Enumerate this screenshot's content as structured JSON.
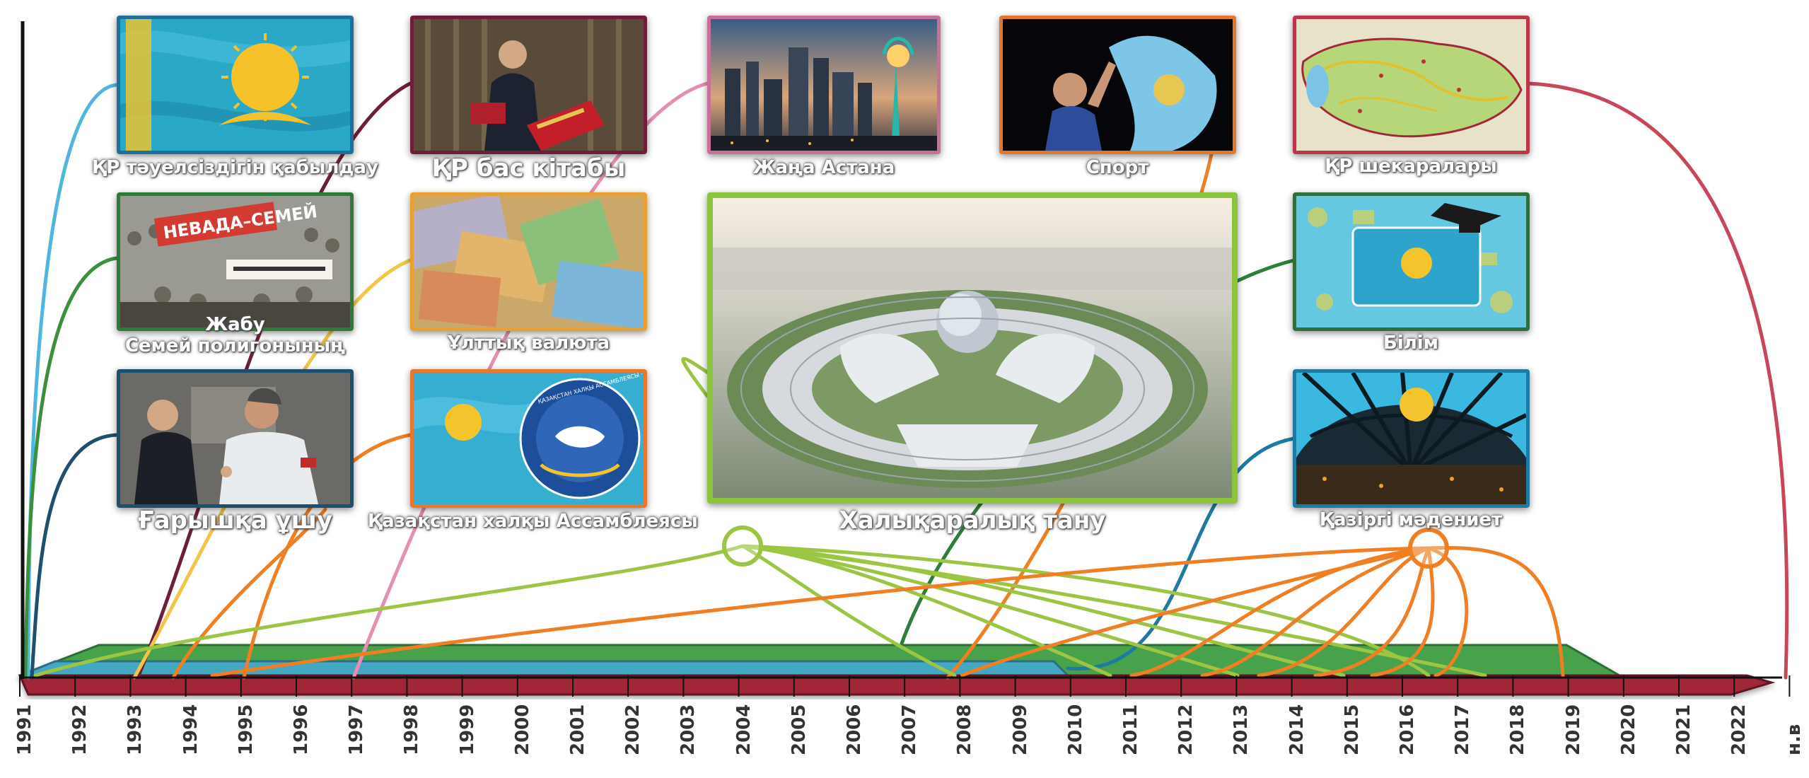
{
  "timeline": {
    "years": [
      "1991",
      "1992",
      "1993",
      "1994",
      "1995",
      "1996",
      "1997",
      "1998",
      "1999",
      "2000",
      "2001",
      "2002",
      "2003",
      "2004",
      "2005",
      "2006",
      "2007",
      "2008",
      "2009",
      "2010",
      "2011",
      "2012",
      "2013",
      "2014",
      "2015",
      "2016",
      "2017",
      "2018",
      "2019",
      "2020",
      "2021",
      "2022",
      "н.в"
    ]
  },
  "cards": [
    {
      "id": "independence",
      "label": "ҚР тәуелсіздігін қабылдау",
      "border": "#1f6f9a",
      "image": "kazakhstan-flag-waving"
    },
    {
      "id": "constitution",
      "label": "ҚР бас кітабы",
      "border": "#6d1f3a",
      "image": "president-reading-constitution"
    },
    {
      "id": "astana",
      "label": "Жаңа Астана",
      "border": "#c86f9a",
      "image": "astana-skyline-baiterek"
    },
    {
      "id": "sport",
      "label": "Спорт",
      "border": "#e07828",
      "image": "athlete-with-flag"
    },
    {
      "id": "borders",
      "label": "ҚР шекаралары",
      "border": "#b8374a",
      "image": "map-of-kazakhstan"
    },
    {
      "id": "polygon",
      "label_line1": "Жабу",
      "label_line2": "Семей полигонының",
      "border": "#2d7a3a",
      "image": "protest-nevada-semey"
    },
    {
      "id": "currency",
      "label": "Ұлттық валюта",
      "border": "#e8a030",
      "image": "tenge-banknotes"
    },
    {
      "id": "recognition",
      "label": "Халықаралық тану",
      "border": "#8cc43c",
      "image": "expo-2017-aerial"
    },
    {
      "id": "education",
      "label": "Білім",
      "border": "#2f6f3f",
      "image": "education-flag-graduation-cap"
    },
    {
      "id": "space",
      "label": "Ғарышқа ұшу",
      "border": "#1f4f6f",
      "image": "president-with-cosmonaut"
    },
    {
      "id": "assembly",
      "label": "Қазақстан халқы Ассамблеясы",
      "border": "#e87830",
      "image": "assembly-emblem-flag"
    },
    {
      "id": "culture",
      "label": "Қазіргі мәдениет",
      "border": "#1e7aa0",
      "image": "khan-shatyr-dome-interior"
    }
  ],
  "assembly_emblem_text": "ҚАЗАҚСТАН ХАЛҚЫ АССАМБЛЕЯСЫ · АССАМБЛЕЯ НАРОДА КАЗАХСТАНА",
  "protest_sign_text": "НЕВАДА–СЕМЕЙ",
  "colors": {
    "axis": "#111111",
    "bar_green": "#46a24c",
    "bar_teal": "#45a8c2",
    "bar_red": "#a02838",
    "line_orange": "#f07e22",
    "line_lime": "#9cc544",
    "line_red": "#c8455a"
  }
}
